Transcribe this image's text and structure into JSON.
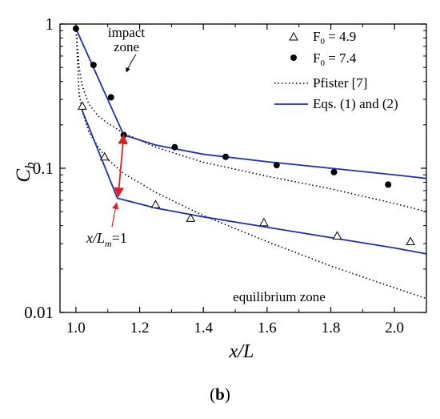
{
  "chart_data": {
    "type": "scatter",
    "x_axis": {
      "label_main": "x/L",
      "ticks": [
        "1.0",
        "1.2",
        "1.4",
        "1.6",
        "1.8",
        "2.0"
      ],
      "tick_values": [
        1.0,
        1.2,
        1.4,
        1.6,
        1.8,
        2.0
      ],
      "range": [
        0.95,
        2.1
      ]
    },
    "y_axis": {
      "label_main": "C",
      "label_sub": "b",
      "scale": "log",
      "ticks": [
        "0.01",
        "0.1",
        "1"
      ],
      "tick_values": [
        0.01,
        0.1,
        1
      ],
      "range": [
        0.01,
        1
      ]
    },
    "legend_position": "top-right",
    "legend": {
      "f49": {
        "prefix": "F",
        "sub": "0",
        "value": " = 4.9"
      },
      "f74": {
        "prefix": "F",
        "sub": "0",
        "value": " = 7.4"
      },
      "pfister": "Pfister [7]",
      "eqs": "Eqs. (1) and (2)"
    },
    "series": [
      {
        "name": "F0 = 4.9",
        "kind": "markers",
        "marker": "open-triangle",
        "points": [
          [
            1.02,
            0.27
          ],
          [
            1.09,
            0.12
          ],
          [
            1.25,
            0.056
          ],
          [
            1.36,
            0.045
          ],
          [
            1.59,
            0.042
          ],
          [
            1.82,
            0.034
          ],
          [
            2.05,
            0.031
          ]
        ]
      },
      {
        "name": "F0 = 7.4",
        "kind": "markers",
        "marker": "filled-circle",
        "points": [
          [
            1.0,
            0.93
          ],
          [
            1.055,
            0.52
          ],
          [
            1.11,
            0.31
          ],
          [
            1.15,
            0.17
          ],
          [
            1.31,
            0.14
          ],
          [
            1.47,
            0.12
          ],
          [
            1.63,
            0.105
          ],
          [
            1.81,
            0.094
          ],
          [
            1.98,
            0.077
          ]
        ]
      },
      {
        "name": "Pfister [7]",
        "kind": "line",
        "style": "dotted",
        "color": "#000000",
        "points": [
          [
            1.0,
            0.95
          ],
          [
            1.01,
            0.5
          ],
          [
            1.02,
            0.37
          ],
          [
            1.04,
            0.28
          ],
          [
            1.07,
            0.23
          ],
          [
            1.1,
            0.205
          ],
          [
            1.15,
            0.175
          ],
          [
            1.25,
            0.14
          ],
          [
            1.4,
            0.11
          ],
          [
            1.6,
            0.088
          ],
          [
            1.8,
            0.072
          ],
          [
            2.0,
            0.057
          ],
          [
            2.1,
            0.05
          ]
        ]
      },
      {
        "name": "Pfister [7]",
        "kind": "line",
        "style": "dotted",
        "color": "#000000",
        "points": [
          [
            1.0,
            0.95
          ],
          [
            1.01,
            0.33
          ],
          [
            1.02,
            0.25
          ],
          [
            1.04,
            0.18
          ],
          [
            1.07,
            0.14
          ],
          [
            1.1,
            0.115
          ],
          [
            1.15,
            0.092
          ],
          [
            1.25,
            0.068
          ],
          [
            1.4,
            0.047
          ],
          [
            1.6,
            0.031
          ],
          [
            1.8,
            0.021
          ],
          [
            2.0,
            0.0148
          ],
          [
            2.1,
            0.0125
          ]
        ]
      },
      {
        "name": "Eqs. (1) and (2)",
        "kind": "line",
        "style": "solid",
        "color": "#1f2fae",
        "points": [
          [
            1.0,
            0.93
          ],
          [
            1.15,
            0.17
          ],
          [
            1.25,
            0.145
          ],
          [
            1.4,
            0.125
          ],
          [
            1.6,
            0.111
          ],
          [
            1.8,
            0.1
          ],
          [
            2.0,
            0.09
          ],
          [
            2.1,
            0.085
          ]
        ]
      },
      {
        "name": "Eqs. (1) and (2)",
        "kind": "line",
        "style": "solid",
        "color": "#1f2fae",
        "points": [
          [
            1.02,
            0.25
          ],
          [
            1.13,
            0.062
          ],
          [
            1.25,
            0.053
          ],
          [
            1.4,
            0.046
          ],
          [
            1.6,
            0.039
          ],
          [
            1.8,
            0.033
          ],
          [
            2.0,
            0.028
          ],
          [
            2.1,
            0.0255
          ]
        ]
      }
    ],
    "arrow": {
      "color": "#e02020",
      "from": [
        1.15,
        0.17
      ],
      "to": [
        1.13,
        0.062
      ]
    },
    "annotations": {
      "impact_line1": "impact",
      "impact_line2": "zone",
      "equilibrium": "equilibrium zone",
      "xlm_main": "x/L",
      "xlm_sub": "m",
      "xlm_tail": "=1"
    },
    "caption": "b"
  }
}
